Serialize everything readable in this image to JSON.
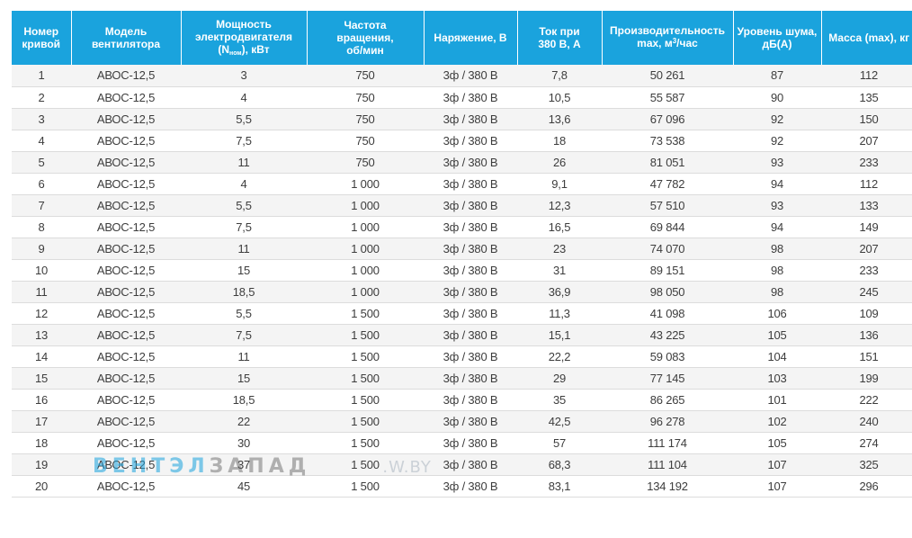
{
  "colors": {
    "header_bg": "#1aa3dd",
    "header_text": "#ffffff",
    "row_alt_bg": "#f4f4f4",
    "cell_text": "#3d3d3d"
  },
  "table": {
    "headers": {
      "curve_no": [
        "Номер",
        "кривой"
      ],
      "model": [
        "Модель",
        "вентилятора"
      ],
      "power_line1": "Мощность",
      "power_line2": "электродвигателя",
      "power_line3_pre": "(N",
      "power_line3_sub": "ном",
      "power_line3_post": "), кВт",
      "speed": [
        "Частота",
        "вращения,",
        "об/мин"
      ],
      "voltage": "Наряжение, В",
      "current": [
        "Ток при",
        "380 В, А"
      ],
      "capacity_line1": "Производительность",
      "capacity_line2_pre": "max, м",
      "capacity_line2_sup": "3",
      "capacity_line2_post": "/час",
      "noise": [
        "Уровень шума,",
        "дБ(А)"
      ],
      "mass": "Масса (max), кг"
    },
    "rows": [
      [
        "1",
        "АВОС-12,5",
        "3",
        "750",
        "3ф / 380 В",
        "7,8",
        "50 261",
        "87",
        "112"
      ],
      [
        "2",
        "АВОС-12,5",
        "4",
        "750",
        "3ф / 380 В",
        "10,5",
        "55 587",
        "90",
        "135"
      ],
      [
        "3",
        "АВОС-12,5",
        "5,5",
        "750",
        "3ф / 380 В",
        "13,6",
        "67 096",
        "92",
        "150"
      ],
      [
        "4",
        "АВОС-12,5",
        "7,5",
        "750",
        "3ф / 380 В",
        "18",
        "73 538",
        "92",
        "207"
      ],
      [
        "5",
        "АВОС-12,5",
        "11",
        "750",
        "3ф / 380 В",
        "26",
        "81 051",
        "93",
        "233"
      ],
      [
        "6",
        "АВОС-12,5",
        "4",
        "1 000",
        "3ф / 380 В",
        "9,1",
        "47 782",
        "94",
        "112"
      ],
      [
        "7",
        "АВОС-12,5",
        "5,5",
        "1 000",
        "3ф / 380 В",
        "12,3",
        "57 510",
        "93",
        "133"
      ],
      [
        "8",
        "АВОС-12,5",
        "7,5",
        "1 000",
        "3ф / 380 В",
        "16,5",
        "69 844",
        "94",
        "149"
      ],
      [
        "9",
        "АВОС-12,5",
        "11",
        "1 000",
        "3ф / 380 В",
        "23",
        "74 070",
        "98",
        "207"
      ],
      [
        "10",
        "АВОС-12,5",
        "15",
        "1 000",
        "3ф / 380 В",
        "31",
        "89 151",
        "98",
        "233"
      ],
      [
        "11",
        "АВОС-12,5",
        "18,5",
        "1 000",
        "3ф / 380 В",
        "36,9",
        "98 050",
        "98",
        "245"
      ],
      [
        "12",
        "АВОС-12,5",
        "5,5",
        "1 500",
        "3ф / 380 В",
        "11,3",
        "41 098",
        "106",
        "109"
      ],
      [
        "13",
        "АВОС-12,5",
        "7,5",
        "1 500",
        "3ф / 380 В",
        "15,1",
        "43 225",
        "105",
        "136"
      ],
      [
        "14",
        "АВОС-12,5",
        "11",
        "1 500",
        "3ф / 380 В",
        "22,2",
        "59 083",
        "104",
        "151"
      ],
      [
        "15",
        "АВОС-12,5",
        "15",
        "1 500",
        "3ф / 380 В",
        "29",
        "77 145",
        "103",
        "199"
      ],
      [
        "16",
        "АВОС-12,5",
        "18,5",
        "1 500",
        "3ф / 380 В",
        "35",
        "86 265",
        "101",
        "222"
      ],
      [
        "17",
        "АВОС-12,5",
        "22",
        "1 500",
        "3ф / 380 В",
        "42,5",
        "96 278",
        "102",
        "240"
      ],
      [
        "18",
        "АВОС-12,5",
        "30",
        "1 500",
        "3ф / 380 В",
        "57",
        "111 174",
        "105",
        "274"
      ],
      [
        "19",
        "АВОС-12,5",
        "37",
        "1 500",
        "3ф / 380 В",
        "68,3",
        "111 104",
        "107",
        "325"
      ],
      [
        "20",
        "АВОС-12,5",
        "45",
        "1 500",
        "3ф / 380 В",
        "83,1",
        "134 192",
        "107",
        "296"
      ]
    ]
  },
  "watermark": {
    "part1": "ВЕНТЭЛ",
    "part2": "ЗАПАД",
    "part3": ".W.BY"
  }
}
